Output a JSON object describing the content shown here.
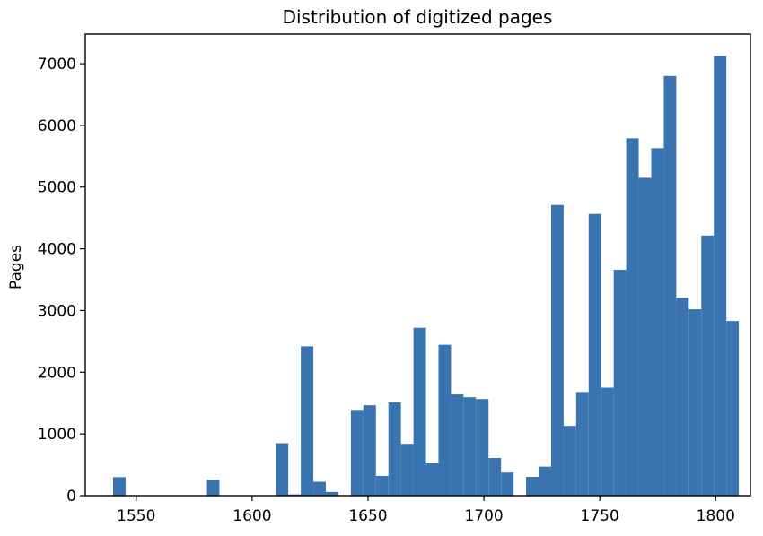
{
  "chart_data": {
    "type": "bar",
    "title": "Distribution of digitized pages",
    "xlabel": "",
    "ylabel": "Pages",
    "bin_width": 5.4,
    "bins": [
      {
        "x": 1540.0,
        "value": 300
      },
      {
        "x": 1580.5,
        "value": 255
      },
      {
        "x": 1610.2,
        "value": 850
      },
      {
        "x": 1615.6,
        "value": 20
      },
      {
        "x": 1621.0,
        "value": 2420
      },
      {
        "x": 1626.4,
        "value": 225
      },
      {
        "x": 1631.8,
        "value": 60
      },
      {
        "x": 1642.6,
        "value": 1390
      },
      {
        "x": 1648.0,
        "value": 1465
      },
      {
        "x": 1653.4,
        "value": 320
      },
      {
        "x": 1658.8,
        "value": 1510
      },
      {
        "x": 1664.2,
        "value": 840
      },
      {
        "x": 1669.6,
        "value": 2720
      },
      {
        "x": 1675.0,
        "value": 525
      },
      {
        "x": 1680.4,
        "value": 2445
      },
      {
        "x": 1685.8,
        "value": 1640
      },
      {
        "x": 1691.2,
        "value": 1595
      },
      {
        "x": 1696.6,
        "value": 1565
      },
      {
        "x": 1702.0,
        "value": 610
      },
      {
        "x": 1707.4,
        "value": 375
      },
      {
        "x": 1718.2,
        "value": 305
      },
      {
        "x": 1723.6,
        "value": 470
      },
      {
        "x": 1729.0,
        "value": 4710
      },
      {
        "x": 1734.4,
        "value": 1130
      },
      {
        "x": 1739.8,
        "value": 1680
      },
      {
        "x": 1745.2,
        "value": 4565
      },
      {
        "x": 1750.6,
        "value": 1750
      },
      {
        "x": 1756.0,
        "value": 3660
      },
      {
        "x": 1761.4,
        "value": 5790
      },
      {
        "x": 1766.8,
        "value": 5150
      },
      {
        "x": 1772.2,
        "value": 5630
      },
      {
        "x": 1777.6,
        "value": 6800
      },
      {
        "x": 1783.0,
        "value": 3205
      },
      {
        "x": 1788.4,
        "value": 3020
      },
      {
        "x": 1793.8,
        "value": 4215
      },
      {
        "x": 1799.2,
        "value": 7125
      },
      {
        "x": 1804.6,
        "value": 2830
      }
    ],
    "xlim": [
      1528,
      1815
    ],
    "ylim": [
      0,
      7480
    ],
    "xticks": [
      1550,
      1600,
      1650,
      1700,
      1750,
      1800
    ],
    "yticks": [
      0,
      1000,
      2000,
      3000,
      4000,
      5000,
      6000,
      7000
    ],
    "grid": false,
    "bar_color": "#3a74b0"
  }
}
